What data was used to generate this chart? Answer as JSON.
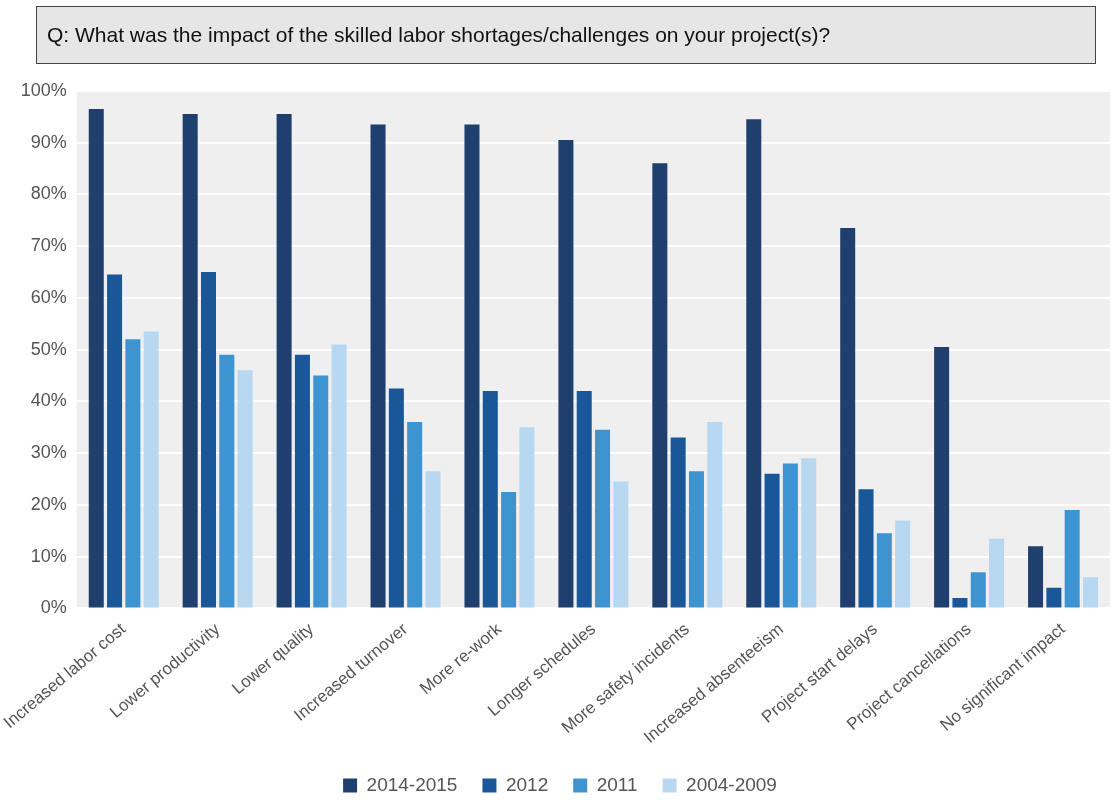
{
  "chart_data": {
    "type": "bar",
    "title": "Q: What was the impact of the skilled labor shortages/challenges on your project(s)?",
    "categories": [
      "Increased labor cost",
      "Lower productivity",
      "Lower quality",
      "Increased turnover",
      "More re-work",
      "Longer schedules",
      "More safety incidents",
      "Increased absenteeism",
      "Project start delays",
      "Project cancellations",
      "No significant impact"
    ],
    "series": [
      {
        "name": "2014-2015",
        "color": "#1f3f6e",
        "values": [
          96.5,
          95.5,
          95.5,
          93.5,
          93.5,
          90.5,
          86,
          94.5,
          73.5,
          50.5,
          12
        ]
      },
      {
        "name": "2012",
        "color": "#1a5799",
        "values": [
          64.5,
          65,
          49,
          42.5,
          42,
          42,
          33,
          26,
          23,
          2,
          4
        ]
      },
      {
        "name": "2011",
        "color": "#3e94d1",
        "values": [
          52,
          49,
          45,
          36,
          22.5,
          34.5,
          26.5,
          28,
          14.5,
          7,
          19
        ]
      },
      {
        "name": "2004-2009",
        "color": "#b7d8f0",
        "values": [
          53.5,
          46,
          51,
          26.5,
          35,
          24.5,
          36,
          29,
          17,
          13.5,
          6
        ]
      }
    ],
    "ylim": [
      0,
      100
    ],
    "yticks": [
      {
        "value": 0,
        "label": "0%"
      },
      {
        "value": 10,
        "label": "10%"
      },
      {
        "value": 20,
        "label": "20%"
      },
      {
        "value": 30,
        "label": "30%"
      },
      {
        "value": 40,
        "label": "40%"
      },
      {
        "value": 50,
        "label": "50%"
      },
      {
        "value": 60,
        "label": "60%"
      },
      {
        "value": 70,
        "label": "70%"
      },
      {
        "value": 80,
        "label": "80%"
      },
      {
        "value": 90,
        "label": "90%"
      },
      {
        "value": 100,
        "label": "100%"
      }
    ],
    "grid": "y",
    "legend": "bottom"
  }
}
